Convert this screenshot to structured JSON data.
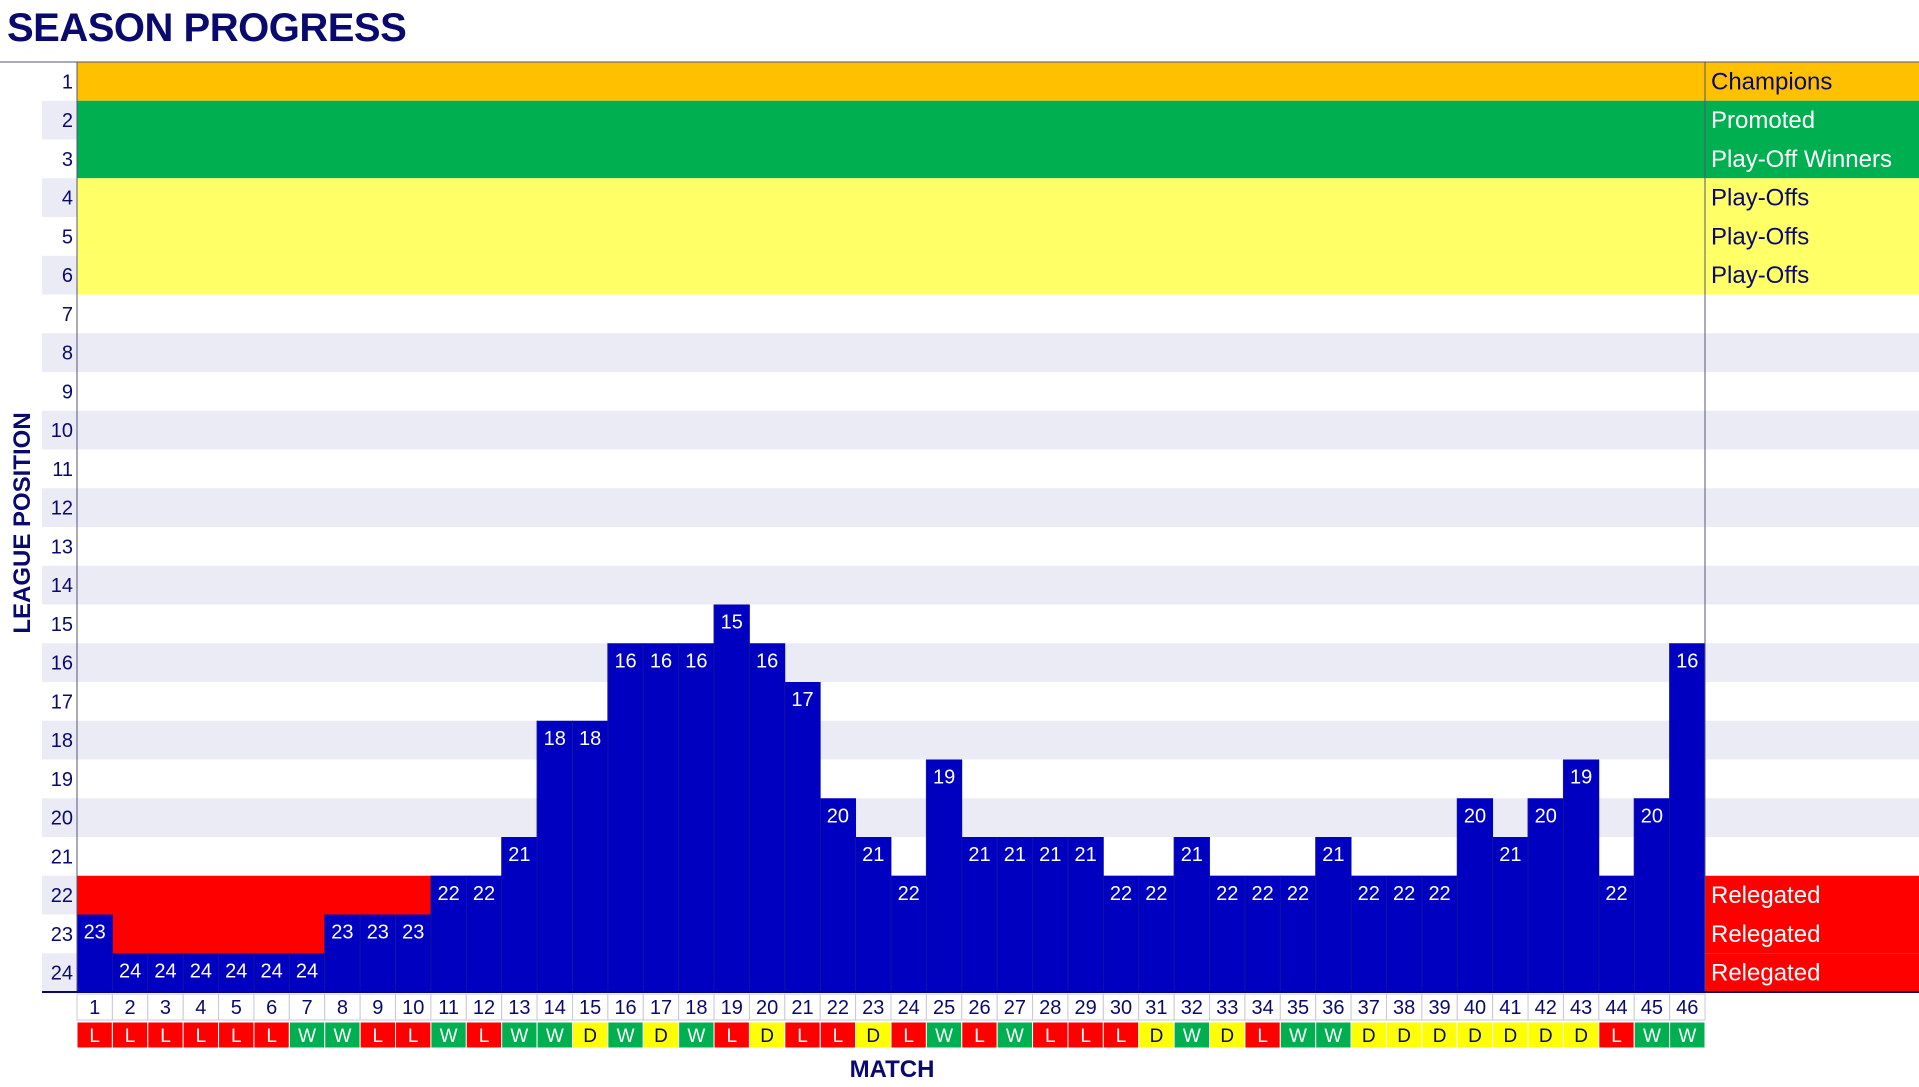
{
  "title": "SEASON PROGRESS",
  "colors": {
    "bar": "#0000c0",
    "champions": "#ffc000",
    "promoted": "#00b050",
    "playoff": "#ffff66",
    "relegated": "#ff0000",
    "stripe": "#ebebf5",
    "navy": "#0a0a6e",
    "win": "#00b050",
    "draw": "#ffff00",
    "loss": "#ff0000"
  },
  "chart_data": {
    "type": "bar",
    "xlabel": "MATCH",
    "ylabel": "LEAGUE POSITION",
    "ylim": [
      1,
      24
    ],
    "y_inverted": true,
    "yticks": [
      1,
      2,
      3,
      4,
      5,
      6,
      7,
      8,
      9,
      10,
      11,
      12,
      13,
      14,
      15,
      16,
      17,
      18,
      19,
      20,
      21,
      22,
      23,
      24
    ],
    "categories": [
      1,
      2,
      3,
      4,
      5,
      6,
      7,
      8,
      9,
      10,
      11,
      12,
      13,
      14,
      15,
      16,
      17,
      18,
      19,
      20,
      21,
      22,
      23,
      24,
      25,
      26,
      27,
      28,
      29,
      30,
      31,
      32,
      33,
      34,
      35,
      36,
      37,
      38,
      39,
      40,
      41,
      42,
      43,
      44,
      45,
      46
    ],
    "values": [
      23,
      24,
      24,
      24,
      24,
      24,
      24,
      23,
      23,
      23,
      22,
      22,
      21,
      18,
      18,
      16,
      16,
      16,
      15,
      16,
      17,
      20,
      21,
      22,
      19,
      21,
      21,
      21,
      21,
      22,
      22,
      21,
      22,
      22,
      22,
      21,
      22,
      22,
      22,
      20,
      21,
      20,
      19,
      22,
      20,
      16
    ],
    "results": [
      "L",
      "L",
      "L",
      "L",
      "L",
      "L",
      "W",
      "W",
      "L",
      "L",
      "W",
      "L",
      "W",
      "W",
      "D",
      "W",
      "D",
      "W",
      "L",
      "D",
      "L",
      "L",
      "D",
      "L",
      "W",
      "L",
      "W",
      "L",
      "L",
      "L",
      "D",
      "W",
      "D",
      "L",
      "W",
      "W",
      "D",
      "D",
      "D",
      "D",
      "D",
      "D",
      "D",
      "L",
      "W",
      "W"
    ],
    "zones": [
      {
        "position": 1,
        "label": "Champions",
        "zone": "champions"
      },
      {
        "position": 2,
        "label": "Promoted",
        "zone": "promoted"
      },
      {
        "position": 3,
        "label": "Play-Off Winners",
        "zone": "promoted"
      },
      {
        "position": 4,
        "label": "Play-Offs",
        "zone": "playoff"
      },
      {
        "position": 5,
        "label": "Play-Offs",
        "zone": "playoff"
      },
      {
        "position": 6,
        "label": "Play-Offs",
        "zone": "playoff"
      },
      {
        "position": 22,
        "label": "Relegated",
        "zone": "relegated"
      },
      {
        "position": 23,
        "label": "Relegated",
        "zone": "relegated"
      },
      {
        "position": 24,
        "label": "Relegated",
        "zone": "relegated"
      }
    ]
  }
}
